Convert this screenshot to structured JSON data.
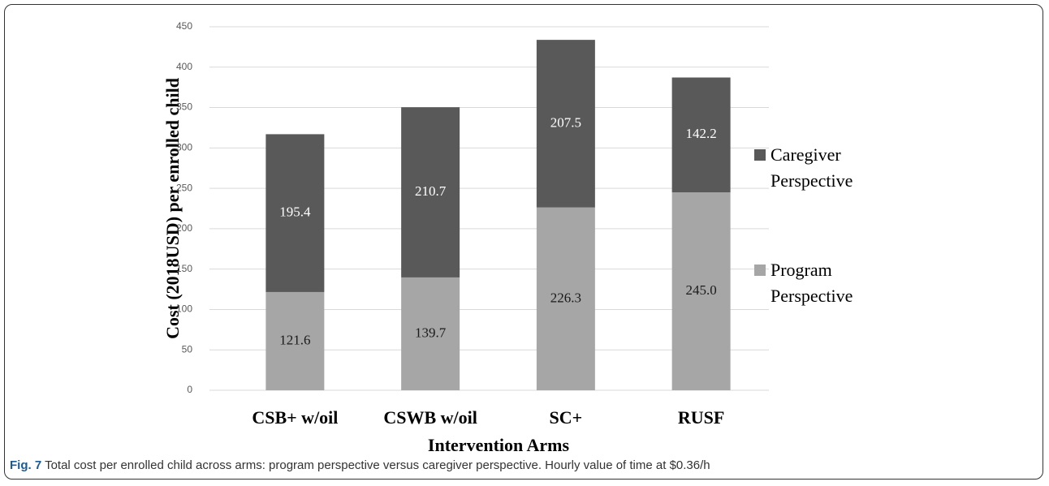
{
  "chart_data": {
    "type": "stacked_bar",
    "x_label": "Intervention Arms",
    "y_label": "Cost (2018USD) per enrolled child",
    "categories": [
      "CSB+ w/oil",
      "CSWB w/oil",
      "SC+",
      "RUSF"
    ],
    "series": [
      {
        "name": "Program Perspective",
        "color": "#a6a6a6",
        "label_color": "#1a1a1a",
        "values": [
          121.6,
          139.7,
          226.3,
          245.0
        ],
        "value_labels": [
          "121.6",
          "139.7",
          "226.3",
          "245.0"
        ]
      },
      {
        "name": "Caregiver Perspective",
        "color": "#595959",
        "label_color": "#ffffff",
        "values": [
          195.4,
          210.7,
          207.5,
          142.2
        ],
        "value_labels": [
          "195.4",
          "210.7",
          "207.5",
          "142.2"
        ]
      }
    ],
    "ylim": [
      0,
      450
    ],
    "yticks": [
      0,
      50,
      100,
      150,
      200,
      250,
      300,
      350,
      400,
      450
    ],
    "grid": true,
    "legend": "right"
  },
  "caption": {
    "label": "Fig. 7",
    "text": "Total cost per enrolled child across arms: program perspective versus caregiver perspective. Hourly value of time at $0.36/h"
  }
}
